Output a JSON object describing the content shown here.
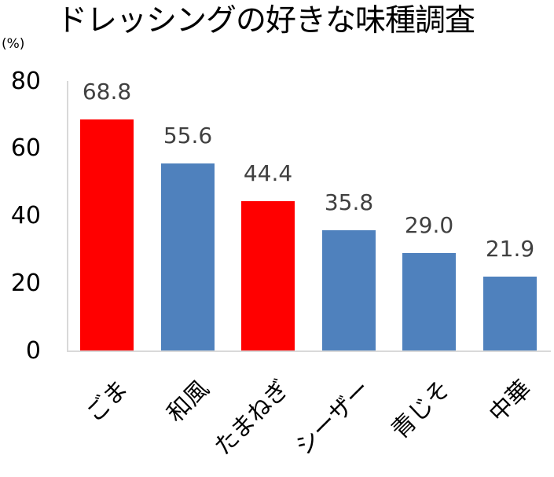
{
  "chart_data": {
    "type": "bar",
    "title": "ドレッシングの好きな味種調査",
    "ylabel": "(%)",
    "xlabel": "",
    "ylim": [
      0,
      80
    ],
    "yticks": [
      "0",
      "20",
      "40",
      "60",
      "80"
    ],
    "grid": false,
    "legend": null,
    "categories": [
      "ごま",
      "和風",
      "たまねぎ",
      "シーザー",
      "青じそ",
      "中華"
    ],
    "values": [
      68.8,
      55.6,
      44.4,
      35.8,
      29.0,
      21.9
    ],
    "value_labels": [
      "68.8",
      "55.6",
      "44.4",
      "35.8",
      "29.0",
      "21.9"
    ],
    "bar_colors": [
      "#FF0000",
      "#4F81BD",
      "#FF0000",
      "#4F81BD",
      "#4F81BD",
      "#4F81BD"
    ]
  },
  "colors": {
    "highlight": "#FF0000",
    "default": "#4F81BD",
    "axis": "#D9D9D9",
    "data_label": "#404040"
  }
}
